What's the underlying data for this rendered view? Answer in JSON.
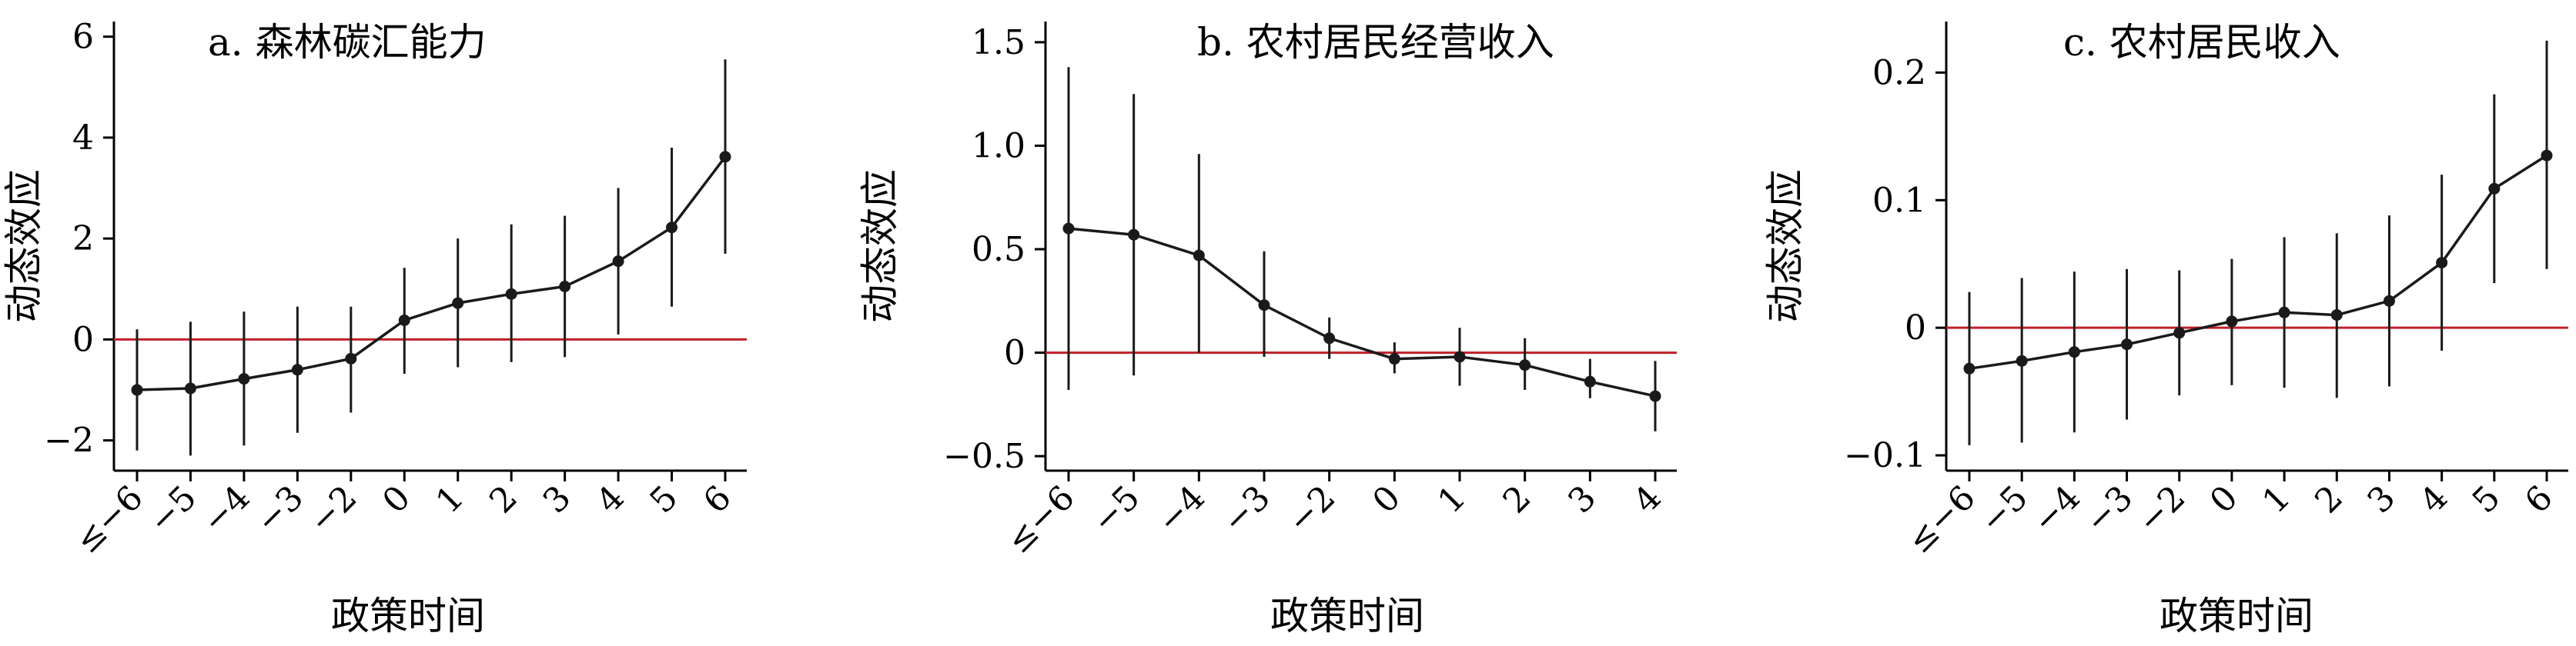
{
  "colors": {
    "reference_line": "#c0202a",
    "series": "#1a1a1a",
    "axis": "#000000"
  },
  "chart_data": [
    {
      "type": "line",
      "title": "a. 森林碳汇能力",
      "xlabel": "政策时间",
      "ylabel": "动态效应",
      "categories": [
        "≤−6",
        "−5",
        "−4",
        "−3",
        "−2",
        "0",
        "1",
        "2",
        "3",
        "4",
        "5",
        "6"
      ],
      "series": [
        {
          "values": [
            -1.0,
            -0.97,
            -0.78,
            -0.6,
            -0.38,
            0.38,
            0.72,
            0.9,
            1.05,
            1.55,
            2.22,
            3.62
          ],
          "lower": [
            -2.2,
            -2.3,
            -2.1,
            -1.85,
            -1.45,
            -0.68,
            -0.55,
            -0.45,
            -0.35,
            0.1,
            0.65,
            1.7
          ],
          "upper": [
            0.2,
            0.35,
            0.55,
            0.65,
            0.65,
            1.42,
            2.0,
            2.28,
            2.45,
            3.0,
            3.8,
            5.55
          ]
        }
      ],
      "reference_line": 0,
      "ylim": [
        -2.6,
        6.3
      ],
      "yticks": [
        6,
        4,
        2,
        0,
        -2
      ],
      "ytick_labels": [
        "6",
        "4",
        "2",
        "0",
        "−2"
      ]
    },
    {
      "type": "line",
      "title": "b. 农村居民经营收入",
      "xlabel": "政策时间",
      "ylabel": "动态效应",
      "categories": [
        "≤−6",
        "−5",
        "−4",
        "−3",
        "−2",
        "0",
        "1",
        "2",
        "3",
        "4"
      ],
      "series": [
        {
          "values": [
            0.6,
            0.57,
            0.47,
            0.23,
            0.07,
            -0.03,
            -0.02,
            -0.06,
            -0.14,
            -0.21
          ],
          "lower": [
            -0.18,
            -0.11,
            0.0,
            -0.02,
            -0.03,
            -0.1,
            -0.16,
            -0.18,
            -0.22,
            -0.38
          ],
          "upper": [
            1.38,
            1.25,
            0.96,
            0.49,
            0.17,
            0.05,
            0.12,
            0.07,
            -0.03,
            -0.04
          ]
        }
      ],
      "reference_line": 0,
      "ylim": [
        -0.57,
        1.6
      ],
      "yticks": [
        1.5,
        1.0,
        0.5,
        0,
        -0.5
      ],
      "ytick_labels": [
        "1.5",
        "1.0",
        "0.5",
        "0",
        "−0.5"
      ]
    },
    {
      "type": "line",
      "title": "c. 农村居民收入",
      "xlabel": "政策时间",
      "ylabel": "动态效应",
      "categories": [
        "≤−6",
        "−5",
        "−4",
        "−3",
        "−2",
        "0",
        "1",
        "2",
        "3",
        "4",
        "5",
        "6"
      ],
      "series": [
        {
          "values": [
            -0.032,
            -0.026,
            -0.019,
            -0.013,
            -0.004,
            0.005,
            0.012,
            0.01,
            0.021,
            0.051,
            0.109,
            0.135
          ],
          "lower": [
            -0.092,
            -0.09,
            -0.082,
            -0.072,
            -0.053,
            -0.045,
            -0.047,
            -0.055,
            -0.046,
            -0.018,
            0.035,
            0.046
          ],
          "upper": [
            0.028,
            0.039,
            0.044,
            0.046,
            0.045,
            0.054,
            0.071,
            0.074,
            0.088,
            0.12,
            0.183,
            0.225
          ]
        }
      ],
      "reference_line": 0,
      "ylim": [
        -0.112,
        0.24
      ],
      "yticks": [
        0.2,
        0.1,
        0,
        -0.1
      ],
      "ytick_labels": [
        "0.2",
        "0.1",
        "0",
        "−0.1"
      ]
    }
  ]
}
